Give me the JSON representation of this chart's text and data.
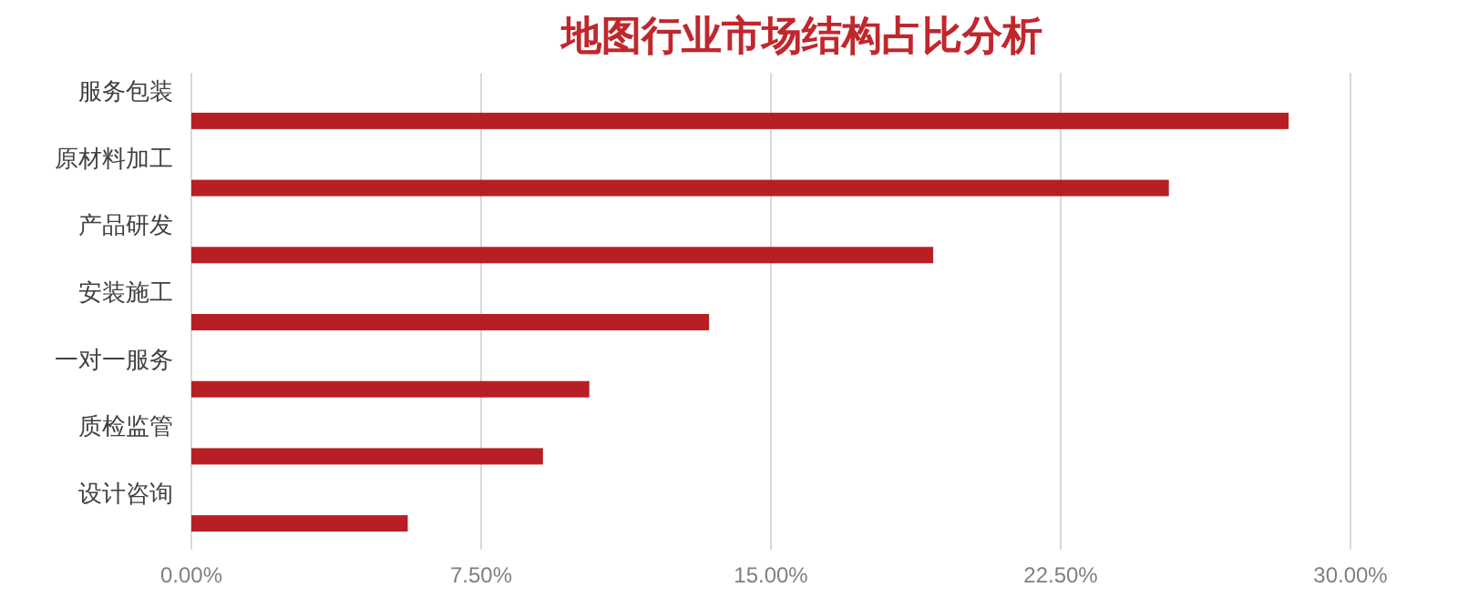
{
  "chart_data": {
    "type": "bar",
    "orientation": "horizontal",
    "title": "地图行业市场结构占比分析",
    "categories": [
      "服务包装",
      "原材料加工",
      "产品研发",
      "安装施工",
      "一对一服务",
      "质检监管",
      "设计咨询"
    ],
    "values": [
      28.4,
      25.3,
      19.2,
      13.4,
      10.3,
      9.1,
      5.6
    ],
    "color": "#b81f25",
    "xlim": [
      0,
      30
    ],
    "xticks": [
      {
        "value": 0,
        "label": "0.00%"
      },
      {
        "value": 7.5,
        "label": "7.50%"
      },
      {
        "value": 15,
        "label": "15.00%"
      },
      {
        "value": 22.5,
        "label": "22.50%"
      },
      {
        "value": 30,
        "label": "30.00%"
      }
    ],
    "grid": "x"
  }
}
